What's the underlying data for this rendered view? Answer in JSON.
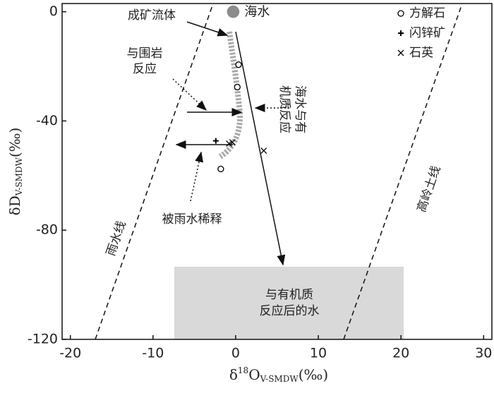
{
  "chart_data": {
    "type": "scatter",
    "xlabel": {
      "main": "δ",
      "sup": "18",
      "main2": "O",
      "sub": "V-SMDW",
      "unit": "(‰)"
    },
    "ylabel": {
      "main": "δD",
      "sub": "V-SMDW",
      "unit": "(‰)"
    },
    "xlim": [
      -21,
      31
    ],
    "xticks": [
      -20,
      -10,
      0,
      10,
      20,
      30
    ],
    "ylim": [
      -120,
      3
    ],
    "yticks": [
      0,
      -40,
      -80,
      -120
    ],
    "legend": "upper right",
    "series": [
      {
        "name": "海水",
        "marker": "filled-circle",
        "color": "#8c8c8c",
        "x": [
          -0.3
        ],
        "y": [
          0
        ]
      },
      {
        "name": "方解石",
        "marker": "circle",
        "color": "#000000",
        "x": [
          0.35,
          0.2,
          -1.8
        ],
        "y": [
          -19.4,
          -27.6,
          -57.6
        ]
      },
      {
        "name": "闪锌矿",
        "marker": "plus",
        "color": "#000000",
        "x": [
          -2.4
        ],
        "y": [
          -47.3
        ]
      },
      {
        "name": "石英",
        "marker": "cross",
        "color": "#000000",
        "x": [
          -0.8,
          -0.4,
          3.4
        ],
        "y": [
          -48.3,
          -47.8,
          -50.9
        ]
      }
    ],
    "annotations": {
      "fluid": "成矿流体",
      "wallrock": [
        "与围岩",
        "反应"
      ],
      "organic": [
        "海水与有",
        "机质反应"
      ],
      "dilution": "被雨水稀释",
      "mwl": "雨水线",
      "kaolinite": "高岭土线",
      "box": [
        "与有机质",
        "反应后的水"
      ]
    }
  }
}
